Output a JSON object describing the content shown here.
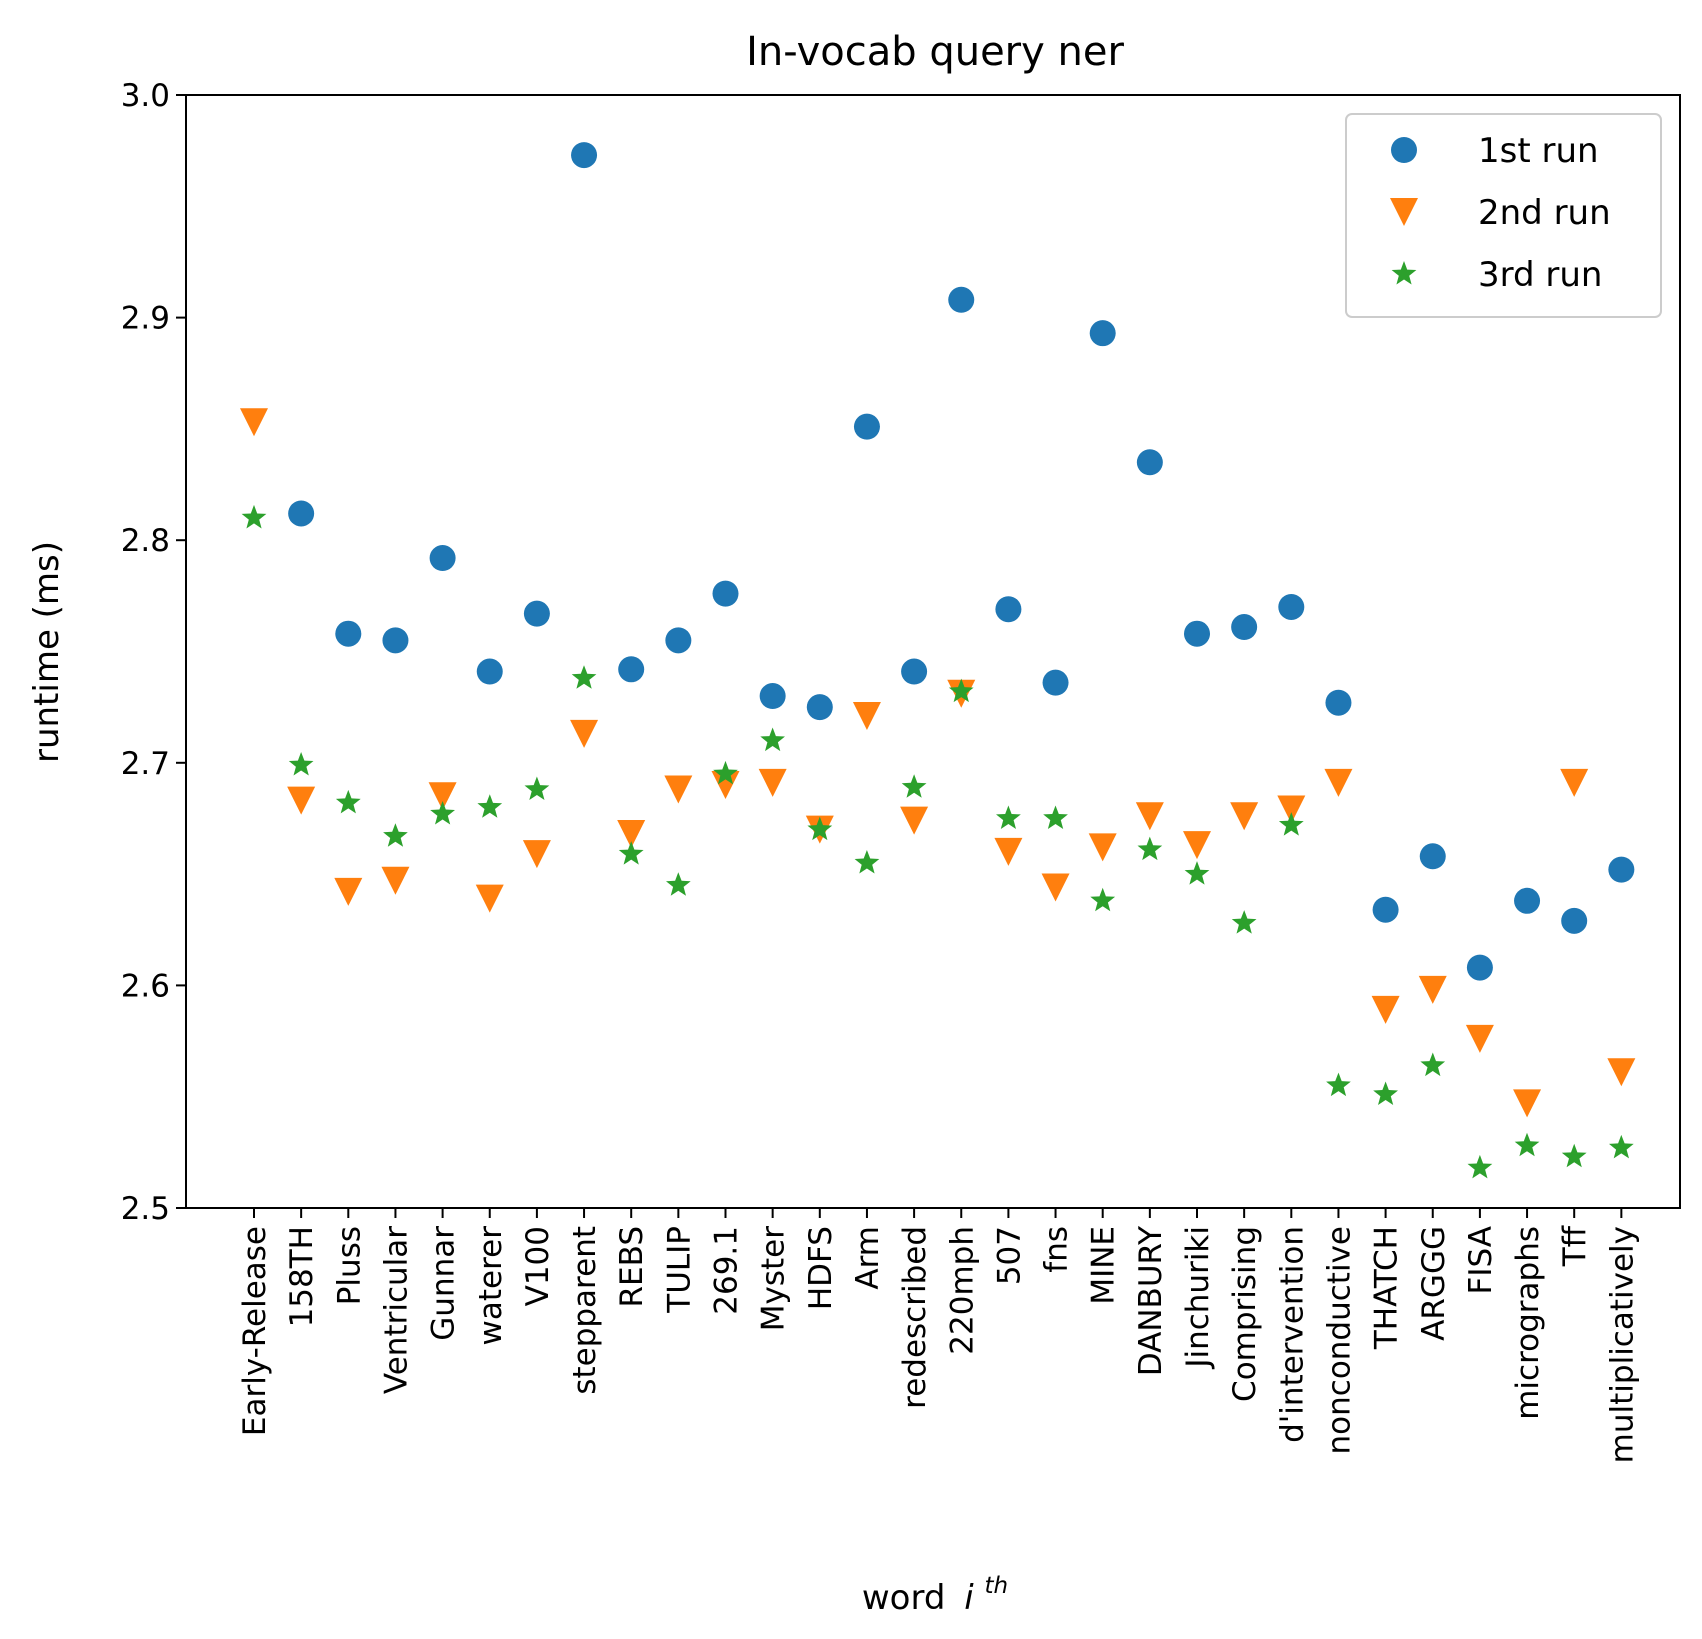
{
  "chart_data": {
    "type": "scatter",
    "title": "In-vocab query ner",
    "xlabel": "word",
    "xlabel_superscript": "th",
    "xlabel_italic": "i",
    "ylabel": "runtime (ms)",
    "ylim": [
      2.5,
      3.0
    ],
    "yticks": [
      "2.5",
      "2.6",
      "2.7",
      "2.8",
      "2.9",
      "3.0"
    ],
    "ytick_values": [
      2.5,
      2.6,
      2.7,
      2.8,
      2.9,
      3.0
    ],
    "grid": false,
    "legend_position": "top-right",
    "categories": [
      "Early-Release",
      "158TH",
      "Pluss",
      "Ventricular",
      "Gunnar",
      "waterer",
      "V100",
      "stepparent",
      "REBS",
      "TULIP",
      "269.1",
      "Myster",
      "HDFS",
      "Arm",
      "redescribed",
      "220mph",
      "507",
      "fns",
      "MINE",
      "DANBURY",
      "Jinchuriki",
      "Comprising",
      "d'intervention",
      "nonconductive",
      "THATCH",
      "ARGGG",
      "FISA",
      "micrographs",
      "Tff",
      "multiplicatively"
    ],
    "series": [
      {
        "name": "1st run",
        "marker": "circle",
        "color": "#1f77b4",
        "values": [
          null,
          2.812,
          2.758,
          2.755,
          2.792,
          2.741,
          2.767,
          2.973,
          2.742,
          2.755,
          2.776,
          2.73,
          2.725,
          2.851,
          2.741,
          2.908,
          2.769,
          2.736,
          2.893,
          2.835,
          2.758,
          2.761,
          2.77,
          2.727,
          2.634,
          2.658,
          2.608,
          2.638,
          2.629,
          2.652
        ]
      },
      {
        "name": "2nd run",
        "marker": "triangle-down",
        "color": "#ff7f0e",
        "values": [
          2.853,
          2.683,
          2.642,
          2.647,
          2.685,
          2.639,
          2.659,
          2.713,
          2.668,
          2.688,
          2.69,
          2.691,
          2.67,
          2.721,
          2.674,
          2.731,
          2.66,
          2.644,
          2.662,
          2.676,
          2.663,
          2.676,
          2.679,
          2.691,
          2.589,
          2.598,
          2.576,
          2.547,
          2.691,
          2.561
        ]
      },
      {
        "name": "3rd run",
        "marker": "star",
        "color": "#2ca02c",
        "values": [
          2.81,
          2.699,
          2.682,
          2.667,
          2.677,
          2.68,
          2.688,
          2.738,
          2.659,
          2.645,
          2.695,
          2.71,
          2.67,
          2.655,
          2.689,
          2.732,
          2.675,
          2.675,
          2.638,
          2.661,
          2.65,
          2.628,
          2.672,
          2.555,
          2.551,
          2.564,
          2.518,
          2.528,
          2.523,
          2.527
        ]
      }
    ]
  }
}
